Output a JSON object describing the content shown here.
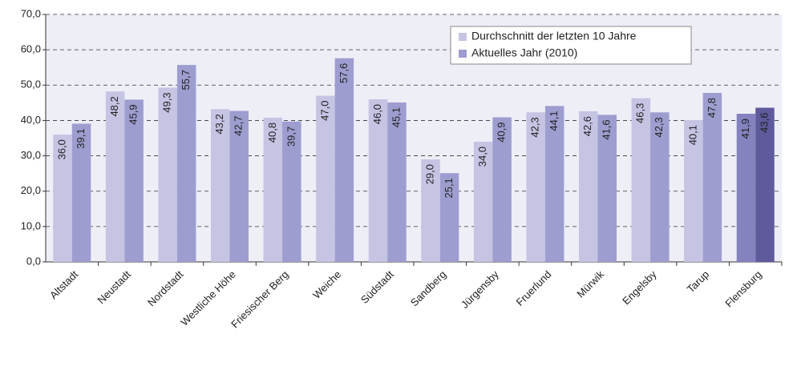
{
  "chart_data": {
    "type": "bar",
    "categories": [
      "Altstadt",
      "Neustadt",
      "Nordstadt",
      "Westliche Höhe",
      "Friesischer Berg",
      "Weiche",
      "Südstadt",
      "Sandberg",
      "Jürgensby",
      "Fruerlund",
      "Mürwik",
      "Engelsby",
      "Tarup",
      "Flensburg"
    ],
    "series": [
      {
        "name": "Durchschnitt der letzten 10 Jahre",
        "color": "#c5c4e3",
        "colors": [
          "#c5c4e3",
          "#c5c4e3",
          "#c5c4e3",
          "#c5c4e3",
          "#c5c4e3",
          "#c5c4e3",
          "#c5c4e3",
          "#c5c4e3",
          "#c5c4e3",
          "#c5c4e3",
          "#c5c4e3",
          "#c5c4e3",
          "#c5c4e3",
          "#8482bf"
        ],
        "values": [
          36.0,
          48.2,
          49.3,
          43.2,
          40.8,
          47.0,
          46.0,
          29.0,
          34.0,
          42.3,
          42.6,
          46.3,
          40.1,
          41.9
        ],
        "value_labels": [
          "36,0",
          "48,2",
          "49,3",
          "43,2",
          "40,8",
          "47,0",
          "46,0",
          "29,0",
          "34,0",
          "42,3",
          "42,6",
          "46,3",
          "40,1",
          "41,9"
        ]
      },
      {
        "name": "Aktuelles Jahr (2010)",
        "color": "#9e9dd0",
        "colors": [
          "#9e9dd0",
          "#9e9dd0",
          "#9e9dd0",
          "#9e9dd0",
          "#9e9dd0",
          "#9e9dd0",
          "#9e9dd0",
          "#9e9dd0",
          "#9e9dd0",
          "#9e9dd0",
          "#9e9dd0",
          "#9e9dd0",
          "#9e9dd0",
          "#5e5a9c"
        ],
        "values": [
          39.1,
          45.9,
          55.7,
          42.7,
          39.7,
          57.6,
          45.1,
          25.1,
          40.9,
          44.1,
          41.6,
          42.3,
          47.8,
          43.6
        ],
        "value_labels": [
          "39,1",
          "45,9",
          "55,7",
          "42,7",
          "39,7",
          "57,6",
          "45,1",
          "25,1",
          "40,9",
          "44,1",
          "41,6",
          "42,3",
          "47,8",
          "43,6"
        ]
      }
    ],
    "ylim": [
      0,
      70
    ],
    "yticks": [
      {
        "value": 0,
        "label": "0,0"
      },
      {
        "value": 10,
        "label": "10,0"
      },
      {
        "value": 20,
        "label": "20,0"
      },
      {
        "value": 30,
        "label": "30,0"
      },
      {
        "value": 40,
        "label": "40,0"
      },
      {
        "value": 50,
        "label": "50,0"
      },
      {
        "value": 60,
        "label": "60,0"
      },
      {
        "value": 70,
        "label": "70,0"
      }
    ],
    "grid": true,
    "legend": "top-right"
  }
}
